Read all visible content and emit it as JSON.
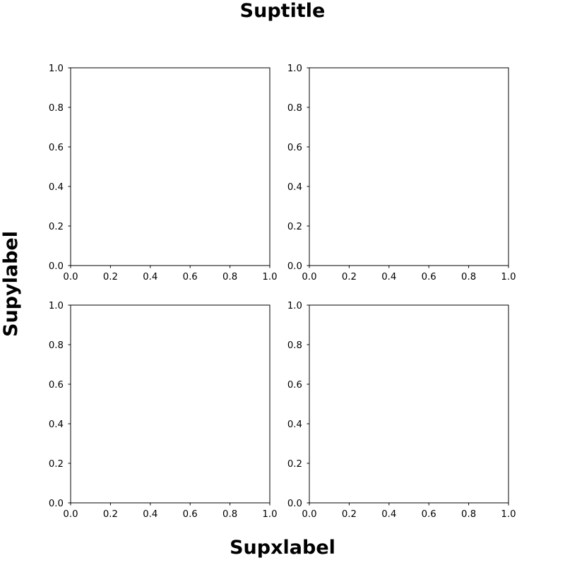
{
  "figure": {
    "suptitle": "Suptitle",
    "supxlabel": "Supxlabel",
    "supylabel": "Supylabel"
  },
  "chart_data": [
    {
      "type": "scatter",
      "position": "top-left",
      "x": [],
      "y": [],
      "xlim": [
        0,
        1
      ],
      "ylim": [
        0,
        1
      ],
      "xticks": [
        "0.0",
        "0.2",
        "0.4",
        "0.6",
        "0.8",
        "1.0"
      ],
      "yticks": [
        "0.0",
        "0.2",
        "0.4",
        "0.6",
        "0.8",
        "1.0"
      ],
      "grid": false
    },
    {
      "type": "scatter",
      "position": "top-right",
      "x": [],
      "y": [],
      "xlim": [
        0,
        1
      ],
      "ylim": [
        0,
        1
      ],
      "xticks": [
        "0.0",
        "0.2",
        "0.4",
        "0.6",
        "0.8",
        "1.0"
      ],
      "yticks": [
        "0.0",
        "0.2",
        "0.4",
        "0.6",
        "0.8",
        "1.0"
      ],
      "grid": false
    },
    {
      "type": "scatter",
      "position": "bottom-left",
      "x": [],
      "y": [],
      "xlim": [
        0,
        1
      ],
      "ylim": [
        0,
        1
      ],
      "xticks": [
        "0.0",
        "0.2",
        "0.4",
        "0.6",
        "0.8",
        "1.0"
      ],
      "yticks": [
        "0.0",
        "0.2",
        "0.4",
        "0.6",
        "0.8",
        "1.0"
      ],
      "grid": false
    },
    {
      "type": "scatter",
      "position": "bottom-right",
      "x": [],
      "y": [],
      "xlim": [
        0,
        1
      ],
      "ylim": [
        0,
        1
      ],
      "xticks": [
        "0.0",
        "0.2",
        "0.4",
        "0.6",
        "0.8",
        "1.0"
      ],
      "yticks": [
        "0.0",
        "0.2",
        "0.4",
        "0.6",
        "0.8",
        "1.0"
      ],
      "grid": false
    }
  ]
}
